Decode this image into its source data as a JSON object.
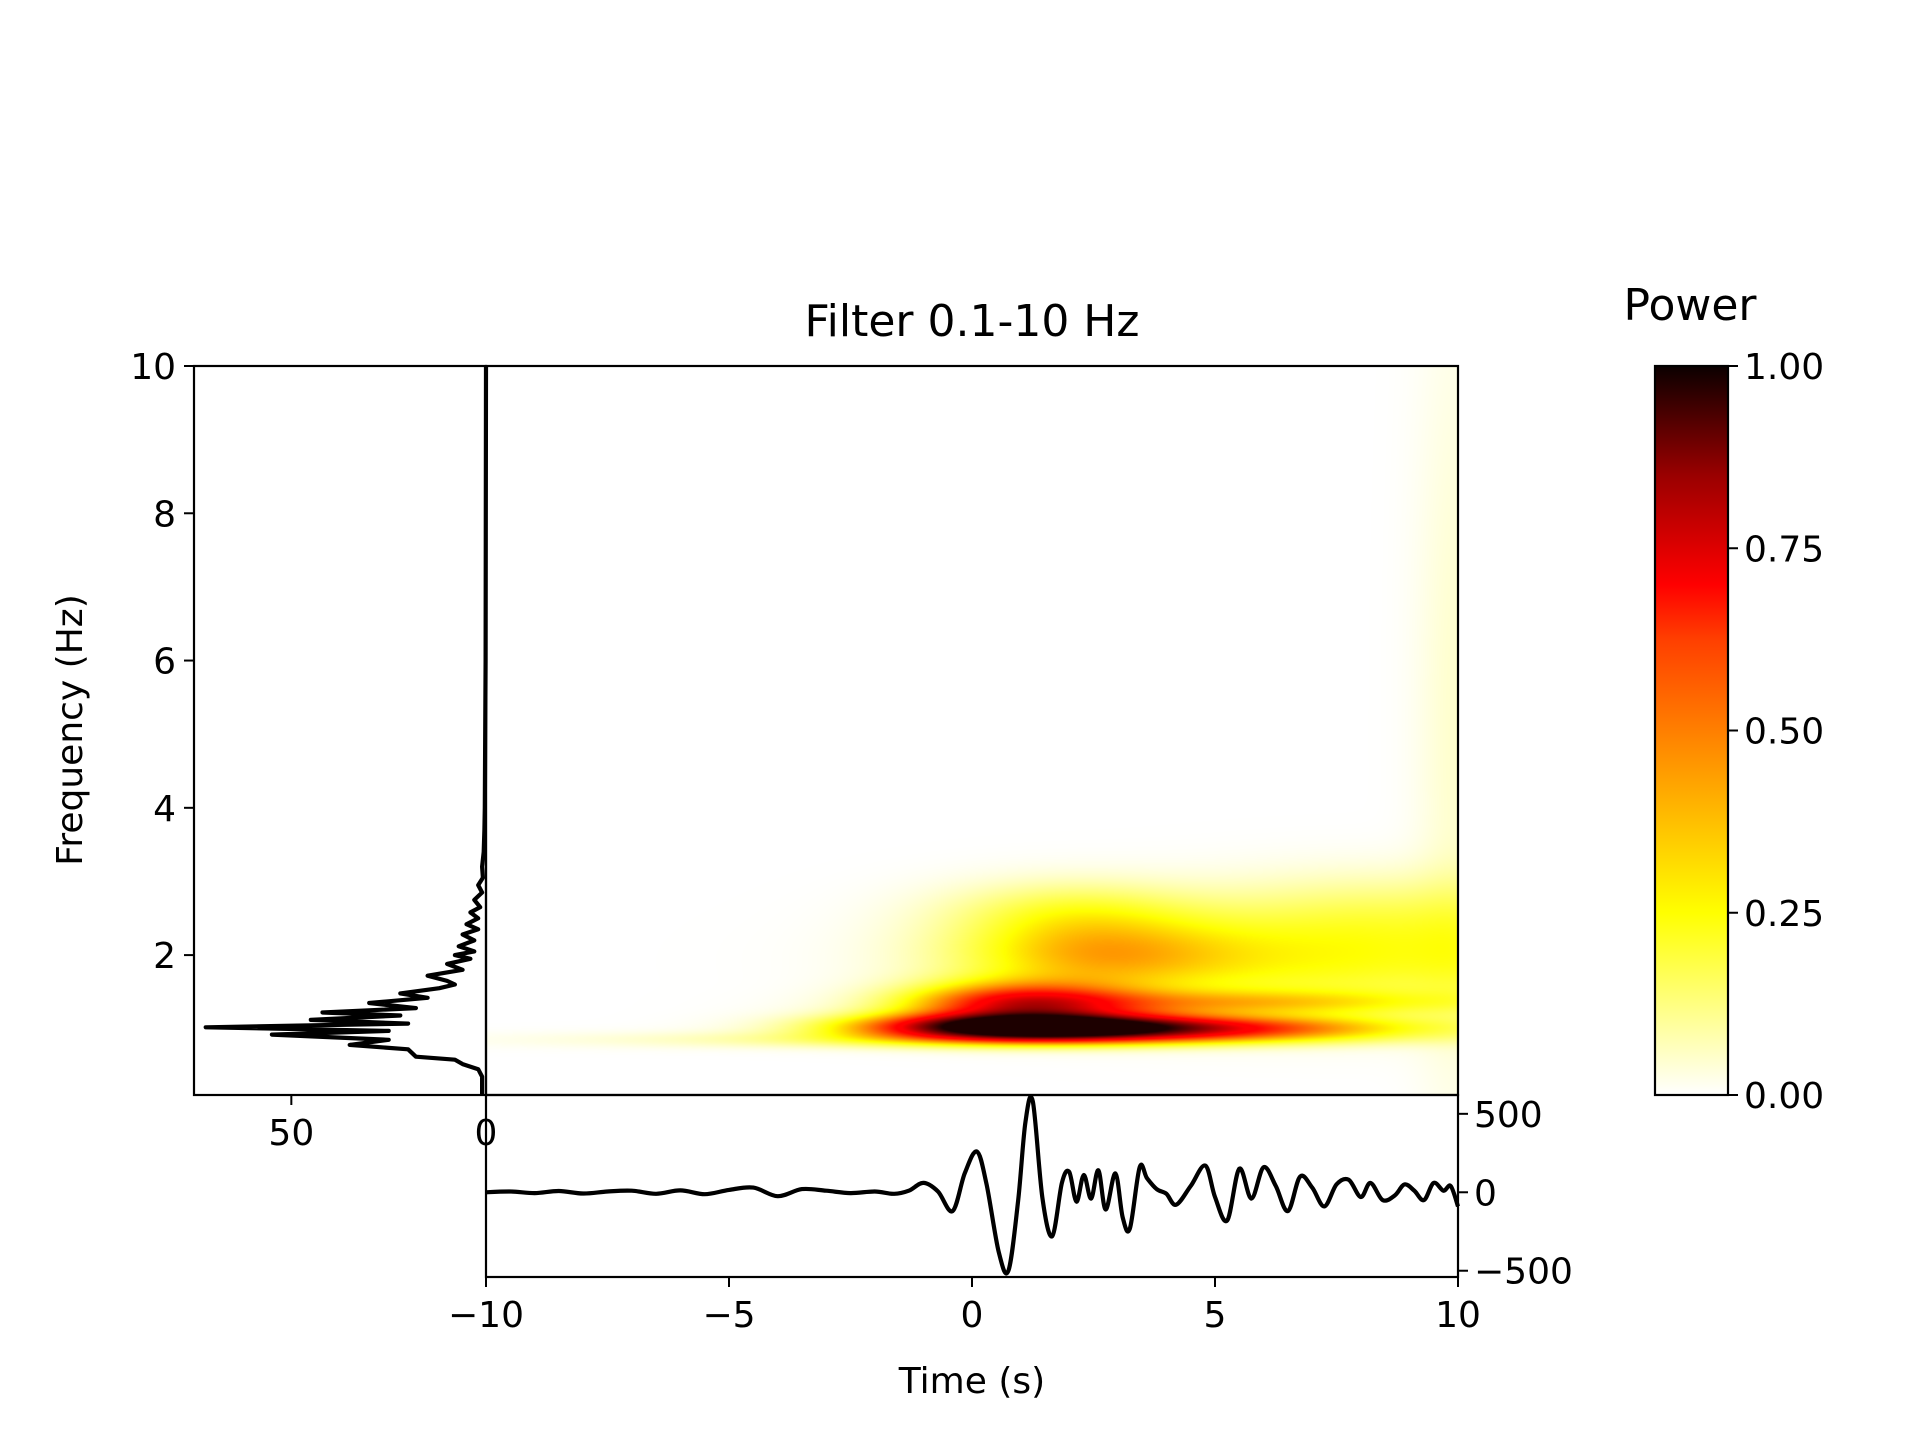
{
  "title": "Filter 0.1-10 Hz",
  "chart_data": [
    {
      "type": "heatmap",
      "panel": "spectrogram",
      "title": "Filter 0.1-10 Hz",
      "xlabel": "",
      "ylabel": "Frequency (Hz)",
      "xlim": [
        -10,
        10
      ],
      "ylim": [
        0.1,
        10
      ],
      "yticks": [
        2,
        4,
        6,
        8,
        10
      ],
      "ytick_labels": [
        "2",
        "4",
        "6",
        "8",
        "10"
      ],
      "colormap": "hot_r",
      "blobs": [
        {
          "t": 1.0,
          "f": 1.02,
          "st": 2.2,
          "sf": 0.13,
          "amp": 1.0
        },
        {
          "t": 4.5,
          "f": 1.0,
          "st": 3.0,
          "sf": 0.12,
          "amp": 0.55
        },
        {
          "t": 1.0,
          "f": 1.35,
          "st": 1.6,
          "sf": 0.2,
          "amp": 0.55
        },
        {
          "t": 5.0,
          "f": 1.35,
          "st": 3.2,
          "sf": 0.12,
          "amp": 0.25
        },
        {
          "t": 2.5,
          "f": 2.0,
          "st": 2.0,
          "sf": 0.35,
          "amp": 0.28
        },
        {
          "t": 7.5,
          "f": 1.9,
          "st": 4.0,
          "sf": 0.5,
          "amp": 0.22
        },
        {
          "t": 2.0,
          "f": 2.6,
          "st": 1.8,
          "sf": 0.3,
          "amp": 0.15
        },
        {
          "t": 8.5,
          "f": 2.6,
          "st": 2.5,
          "sf": 0.4,
          "amp": 0.1
        },
        {
          "t": 10.0,
          "f": 5.0,
          "st": 0.6,
          "sf": 4.0,
          "amp": 0.05
        },
        {
          "t": 0.0,
          "f": 0.85,
          "st": 5.0,
          "sf": 0.08,
          "amp": 0.12
        }
      ]
    },
    {
      "type": "line",
      "panel": "power-spectrum",
      "xlabel": "",
      "ylabel": "",
      "xlim": [
        75,
        0
      ],
      "xticks": [
        50,
        0
      ],
      "xtick_labels": [
        "50",
        "0"
      ],
      "series": [
        {
          "freq": [
            0.1,
            0.35,
            0.45,
            0.52,
            0.58,
            0.62,
            0.72,
            0.78,
            0.85,
            0.92,
            0.97,
            1.02,
            1.07,
            1.12,
            1.18,
            1.22,
            1.28,
            1.35,
            1.42,
            1.48,
            1.55,
            1.6,
            1.65,
            1.72,
            1.8,
            1.88,
            1.95,
            2.0,
            2.05,
            2.12,
            2.2,
            2.28,
            2.35,
            2.42,
            2.5,
            2.58,
            2.65,
            2.75,
            2.85,
            2.95,
            3.05,
            3.2,
            3.4,
            3.7,
            4.0,
            6.0,
            10.0
          ],
          "power": [
            1,
            1,
            2,
            6,
            8,
            18,
            20,
            35,
            25,
            55,
            25,
            72,
            20,
            45,
            22,
            42,
            18,
            30,
            15,
            22,
            12,
            8,
            10,
            15,
            6,
            10,
            4,
            8,
            3,
            7,
            3,
            6,
            2,
            5,
            2,
            4,
            1.5,
            3,
            1,
            2,
            0.8,
            1,
            0.6,
            0.4,
            0.3,
            0.1,
            0
          ]
        }
      ]
    },
    {
      "type": "line",
      "panel": "waveform",
      "xlabel": "Time (s)",
      "ylabel": "",
      "xlim": [
        -10,
        10
      ],
      "ylim": [
        -540,
        620
      ],
      "xticks": [
        -10,
        -5,
        0,
        5,
        10
      ],
      "xtick_labels": [
        "−10",
        "−5",
        "0",
        "5",
        "10"
      ],
      "yticks": [
        500,
        0,
        -500
      ],
      "ytick_labels": [
        "500",
        "0",
        "−500"
      ],
      "series": [
        {
          "t": [
            -10,
            -9.5,
            -9.0,
            -8.5,
            -8.0,
            -7.5,
            -7.0,
            -6.5,
            -6.0,
            -5.5,
            -5.0,
            -4.5,
            -4.0,
            -3.5,
            -3.0,
            -2.5,
            -2.0,
            -1.6,
            -1.3,
            -1.0,
            -0.7,
            -0.4,
            -0.15,
            0.1,
            0.3,
            0.55,
            0.75,
            0.95,
            1.1,
            1.25,
            1.45,
            1.65,
            1.85,
            2.0,
            2.15,
            2.3,
            2.45,
            2.6,
            2.75,
            2.95,
            3.1,
            3.25,
            3.45,
            3.6,
            3.8,
            4.0,
            4.2,
            4.5,
            4.8,
            5.0,
            5.25,
            5.5,
            5.75,
            6.0,
            6.25,
            6.5,
            6.75,
            7.0,
            7.25,
            7.5,
            7.75,
            8.0,
            8.2,
            8.45,
            8.7,
            8.9,
            9.1,
            9.3,
            9.5,
            9.7,
            9.85,
            10.0
          ],
          "amplitude": [
            0,
            5,
            -5,
            8,
            -8,
            5,
            10,
            -10,
            12,
            -12,
            15,
            30,
            -25,
            20,
            10,
            -5,
            5,
            -10,
            10,
            60,
            5,
            -120,
            120,
            260,
            50,
            -380,
            -500,
            -50,
            450,
            580,
            -40,
            -280,
            60,
            130,
            -60,
            110,
            -40,
            140,
            -110,
            120,
            -160,
            -230,
            160,
            90,
            20,
            -10,
            -80,
            40,
            170,
            -30,
            -180,
            150,
            -40,
            160,
            40,
            -120,
            100,
            30,
            -90,
            50,
            80,
            -30,
            60,
            -50,
            -20,
            50,
            10,
            -50,
            60,
            10,
            40,
            -90
          ]
        }
      ]
    },
    {
      "type": "heatmap",
      "panel": "colorbar",
      "title": "Power",
      "range": [
        0,
        1
      ],
      "ticks": [
        0,
        0.25,
        0.5,
        0.75,
        1
      ],
      "tick_labels": [
        "0.00",
        "0.25",
        "0.50",
        "0.75",
        "1.00"
      ],
      "colormap": "hot_r"
    }
  ]
}
